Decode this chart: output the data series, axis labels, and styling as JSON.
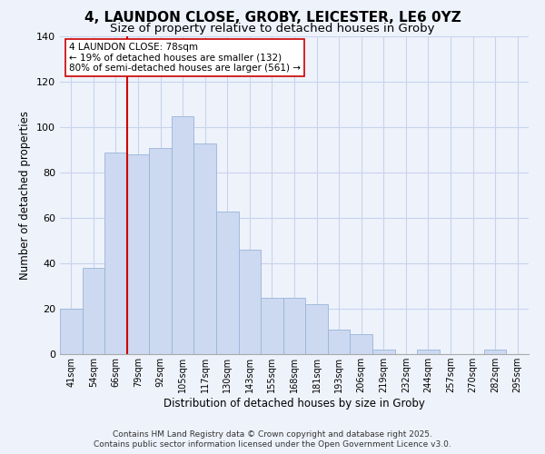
{
  "title": "4, LAUNDON CLOSE, GROBY, LEICESTER, LE6 0YZ",
  "subtitle": "Size of property relative to detached houses in Groby",
  "xlabel": "Distribution of detached houses by size in Groby",
  "ylabel": "Number of detached properties",
  "categories": [
    "41sqm",
    "54sqm",
    "66sqm",
    "79sqm",
    "92sqm",
    "105sqm",
    "117sqm",
    "130sqm",
    "143sqm",
    "155sqm",
    "168sqm",
    "181sqm",
    "193sqm",
    "206sqm",
    "219sqm",
    "232sqm",
    "244sqm",
    "257sqm",
    "270sqm",
    "282sqm",
    "295sqm"
  ],
  "values": [
    20,
    38,
    89,
    88,
    91,
    105,
    93,
    63,
    46,
    25,
    25,
    22,
    11,
    9,
    2,
    0,
    2,
    0,
    0,
    2,
    0
  ],
  "bar_color": "#ccd9f0",
  "bar_edge_color": "#9ab4d8",
  "vline_index": 3,
  "vline_color": "#cc0000",
  "annotation_text": "4 LAUNDON CLOSE: 78sqm\n← 19% of detached houses are smaller (132)\n80% of semi-detached houses are larger (561) →",
  "ylim": [
    0,
    140
  ],
  "yticks": [
    0,
    20,
    40,
    60,
    80,
    100,
    120,
    140
  ],
  "background_color": "#eef2fb",
  "grid_color": "#c8d4ec",
  "title_fontsize": 11,
  "subtitle_fontsize": 9.5,
  "footer_text": "Contains HM Land Registry data © Crown copyright and database right 2025.\nContains public sector information licensed under the Open Government Licence v3.0.",
  "footer_fontsize": 6.5
}
